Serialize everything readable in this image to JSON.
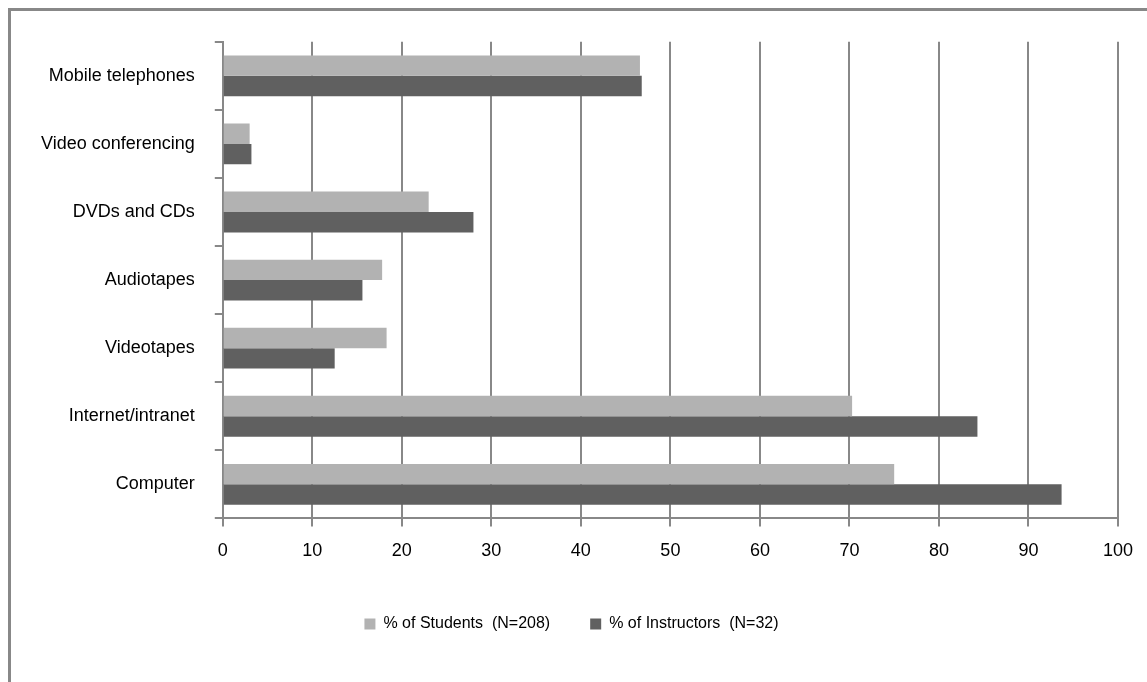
{
  "chart_data": {
    "type": "bar",
    "orientation": "horizontal",
    "categories": [
      "Mobile telephones",
      "Video conferencing",
      "DVDs and CDs",
      "Audiotapes",
      "Videotapes",
      "Internet/intranet",
      "Computer"
    ],
    "series": [
      {
        "name": "% of Students  (N=208)",
        "color": "#b2b2b2",
        "values": [
          46.6,
          3.0,
          23.0,
          17.8,
          18.3,
          70.3,
          75.0
        ]
      },
      {
        "name": "% of Instructors  (N=32)",
        "color": "#606060",
        "values": [
          46.8,
          3.2,
          28.0,
          15.6,
          12.5,
          84.3,
          93.7
        ]
      }
    ],
    "xlim": [
      0,
      100
    ],
    "xticks": [
      0,
      10,
      20,
      30,
      40,
      50,
      60,
      70,
      80,
      90,
      100
    ],
    "grid": "x",
    "legend": "bottom"
  }
}
